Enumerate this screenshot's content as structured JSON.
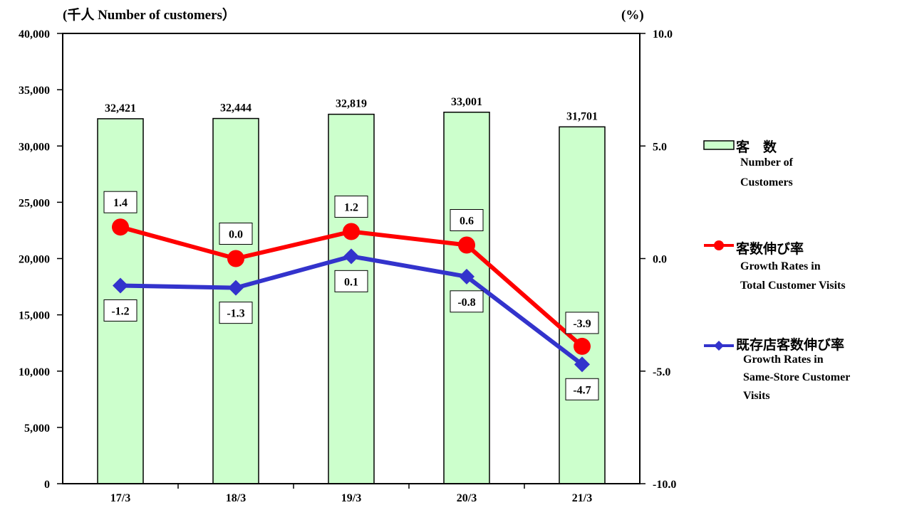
{
  "chart_data": {
    "type": "bar",
    "left_axis_title": "(千人 Number of customers）",
    "right_axis_title": "(%)",
    "categories": [
      "17/3",
      "18/3",
      "19/3",
      "20/3",
      "21/3"
    ],
    "y_left": {
      "min": 0,
      "max": 40000,
      "ticks": [
        "0",
        "5,000",
        "10,000",
        "15,000",
        "20,000",
        "25,000",
        "30,000",
        "35,000",
        "40,000"
      ]
    },
    "y_right": {
      "min": -10,
      "max": 10,
      "ticks": [
        "-10.0",
        "-5.0",
        "0.0",
        "5.0",
        "10.0"
      ]
    },
    "grid": false,
    "bars": {
      "name": "客　数",
      "name_en": "Number of Customers",
      "values": [
        32421,
        32444,
        32819,
        33001,
        31701
      ],
      "labels": [
        "32,421",
        "32,444",
        "32,819",
        "33,001",
        "31,701"
      ],
      "color": "#ccffcc"
    },
    "lines": [
      {
        "name": "客数伸び率",
        "name_en": "Growth Rates in Total Customer Visits",
        "values": [
          1.4,
          0.0,
          1.2,
          0.6,
          -3.9
        ],
        "labels": [
          "1.4",
          "0.0",
          "1.2",
          "0.6",
          "-3.9"
        ],
        "color": "#ff0000",
        "marker": "circle"
      },
      {
        "name": "既存店客数伸び率",
        "name_en": "Growth Rates in Same-Store Customer Visits",
        "values": [
          -1.2,
          -1.3,
          0.1,
          -0.8,
          -4.7
        ],
        "labels": [
          "-1.2",
          "-1.3",
          "0.1",
          "-0.8",
          "-4.7"
        ],
        "color": "#3333cc",
        "marker": "diamond"
      }
    ],
    "legend_position": "right"
  },
  "legend": {
    "bars_jp": "客　数",
    "bars_en_1": "Number of",
    "bars_en_2": "Customers",
    "line1_jp": "客数伸び率",
    "line1_en_1": "Growth Rates in",
    "line1_en_2": "Total Customer Visits",
    "line2_jp": "既存店客数伸び率",
    "line2_en_1": "Growth Rates in",
    "line2_en_2": "Same-Store Customer",
    "line2_en_3": "Visits"
  }
}
